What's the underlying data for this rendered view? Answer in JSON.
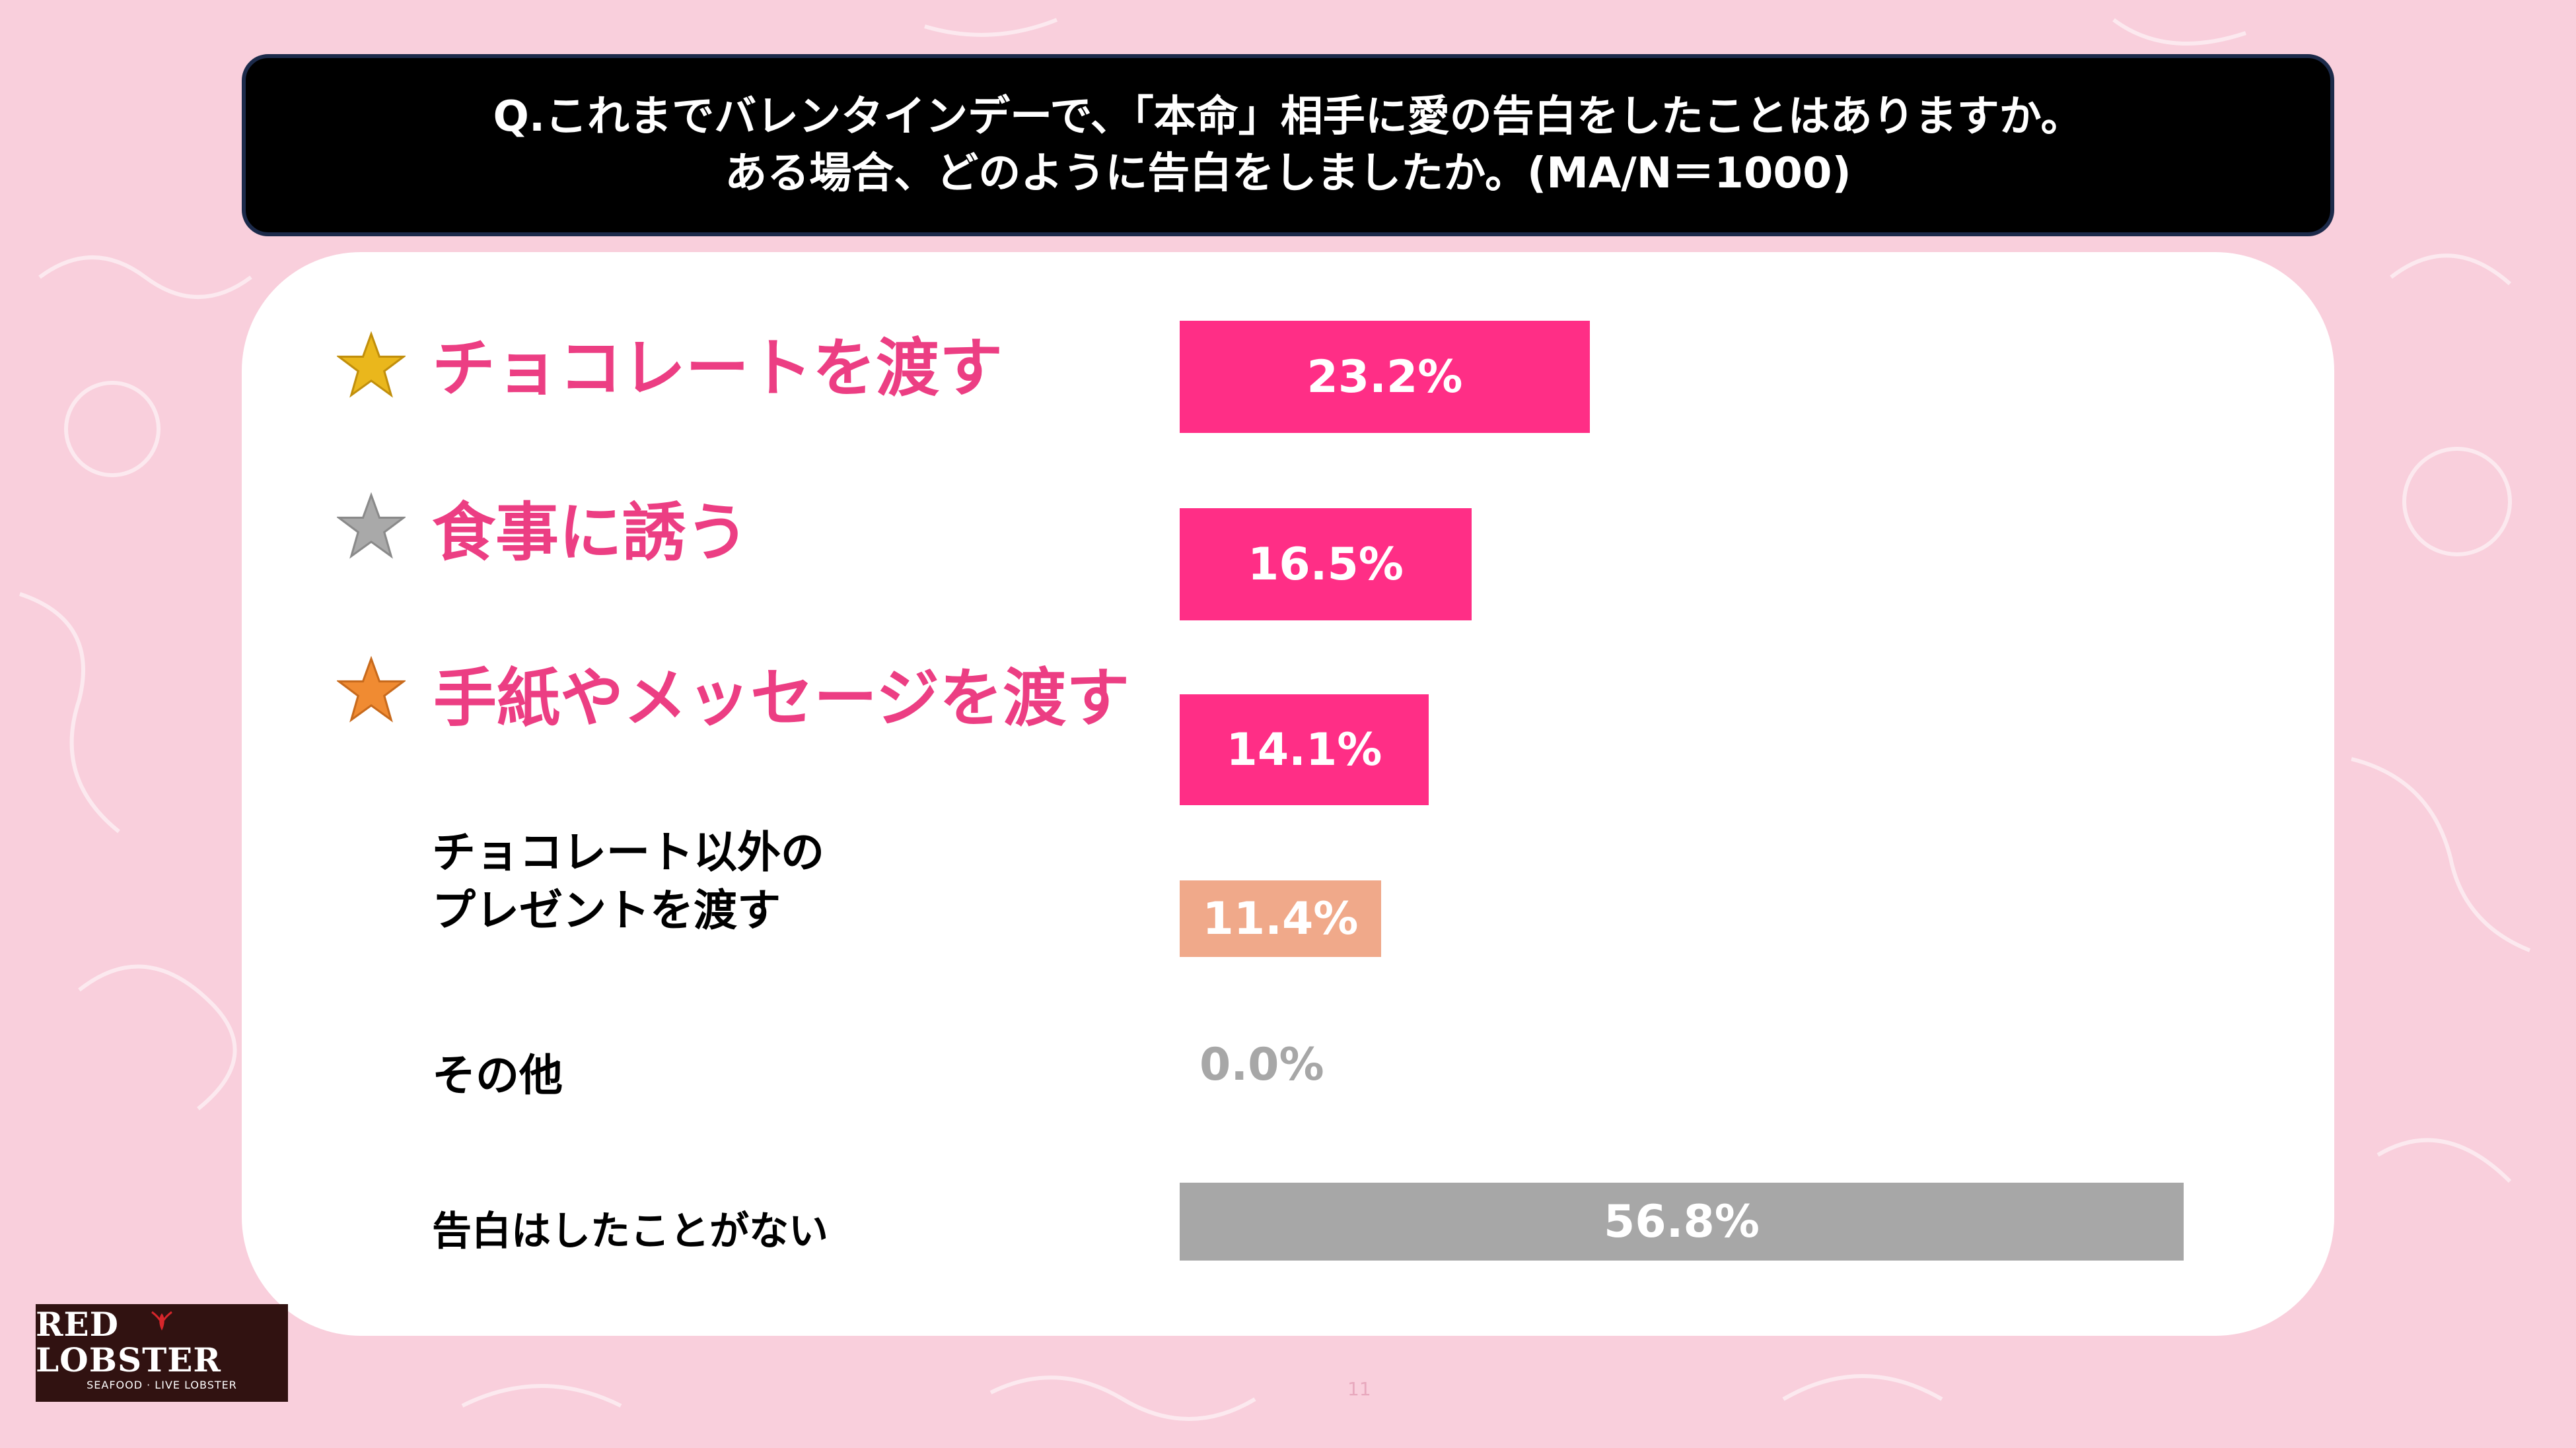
{
  "title": {
    "line1": "Q.これまでバレンタインデーで、「本命」相手に愛の告白をしたことはありますか。",
    "line2": "ある場合、どのように告白をしましたか。(MA/N＝1000)"
  },
  "icons": {
    "rank1": "gold-star-icon",
    "rank2": "silver-star-icon",
    "rank3": "bronze-star-icon"
  },
  "colors": {
    "background": "#f9cfdc",
    "accent_pink": "#ff2e86",
    "label_pink": "#ec3e83",
    "salmon": "#f0a98a",
    "gray": "#a7a7a7",
    "gold_star": "#eab71c",
    "silver_star": "#a9a9a9",
    "bronze_star": "#f08b32"
  },
  "chart_data": {
    "type": "bar",
    "orientation": "horizontal",
    "categories": [
      "チョコレートを渡す",
      "食事に誘う",
      "手紙やメッセージを渡す",
      "チョコレート以外の\nプレゼントを渡す",
      "その他",
      "告白はしたことがない"
    ],
    "values": [
      23.2,
      16.5,
      14.1,
      11.4,
      0.0,
      56.8
    ],
    "value_labels": [
      "23.2%",
      "16.5%",
      "14.1%",
      "11.4%",
      "0.0%",
      "56.8%"
    ],
    "bar_colors": [
      "#ff2e86",
      "#ff2e86",
      "#ff2e86",
      "#f0a98a",
      "#a7a7a7",
      "#a7a7a7"
    ],
    "xlim": [
      0,
      56.8
    ]
  },
  "labels": {
    "item4_line1": "チョコレート以外の",
    "item4_line2": "プレゼントを渡す"
  },
  "logo": {
    "name": "RED LOBSTER",
    "tagline": "SEAFOOD · LIVE LOBSTER"
  },
  "page_number": "11"
}
